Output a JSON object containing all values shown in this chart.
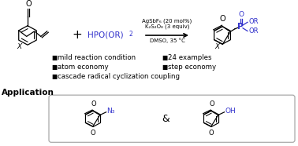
{
  "background_color": "#ffffff",
  "blue_color": "#3333cc",
  "black_color": "#000000",
  "reagent_line1": "AgSbF₆ (20 mol%)",
  "reagent_line2": "K₂S₂O₈ (3 equiv)",
  "reagent_line3": "DMSO, 35 °C",
  "bullet_items_left": [
    "mild reaction condition",
    "atom economy",
    "cascade radical cyclization coupling"
  ],
  "bullet_items_right": [
    "24 examples",
    "step economy"
  ],
  "application_label": "Application",
  "fig_width": 3.78,
  "fig_height": 1.86,
  "dpi": 100
}
